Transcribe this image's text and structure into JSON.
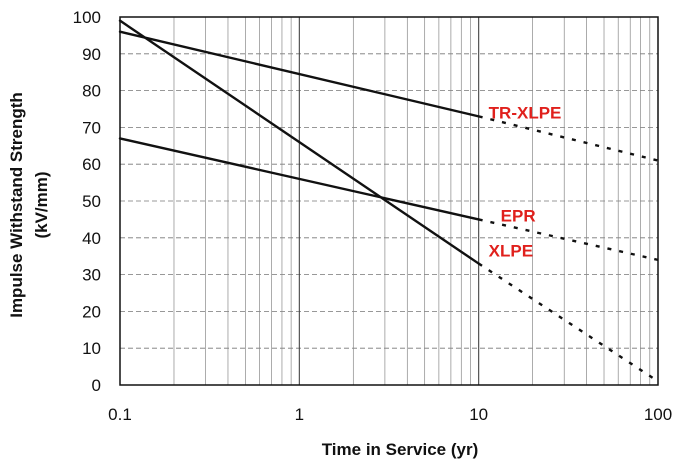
{
  "chart_data": {
    "type": "line",
    "xlabel": "Time in Service (yr)",
    "ylabel_lines": [
      "Impulse Withstand Strength",
      "(kV/mm)"
    ],
    "x_scale": "log",
    "xlim": [
      0.1,
      100
    ],
    "ylim": [
      0,
      100
    ],
    "x_ticks": [
      0.1,
      1,
      10,
      100
    ],
    "x_tick_labels": [
      "0.1",
      "1",
      "10",
      "100"
    ],
    "y_ticks": [
      0,
      10,
      20,
      30,
      40,
      50,
      60,
      70,
      80,
      90,
      100
    ],
    "y_tick_labels": [
      "0",
      "10",
      "20",
      "30",
      "40",
      "50",
      "60",
      "70",
      "80",
      "90",
      "100"
    ],
    "grid": true,
    "label_color": "#e0201c",
    "line_color": "#111111",
    "series": [
      {
        "name": "TR-XLPE",
        "measured": [
          [
            0.1,
            96
          ],
          [
            10,
            73
          ]
        ],
        "extrapolated": [
          [
            10,
            73
          ],
          [
            100,
            61
          ]
        ]
      },
      {
        "name": "EPR",
        "measured": [
          [
            0.1,
            67
          ],
          [
            10,
            45
          ]
        ],
        "extrapolated": [
          [
            10,
            45
          ],
          [
            100,
            34
          ]
        ]
      },
      {
        "name": "XLPE",
        "measured": [
          [
            0.1,
            99
          ],
          [
            10,
            33
          ]
        ],
        "extrapolated": [
          [
            10,
            33
          ],
          [
            100,
            1
          ]
        ]
      }
    ]
  }
}
